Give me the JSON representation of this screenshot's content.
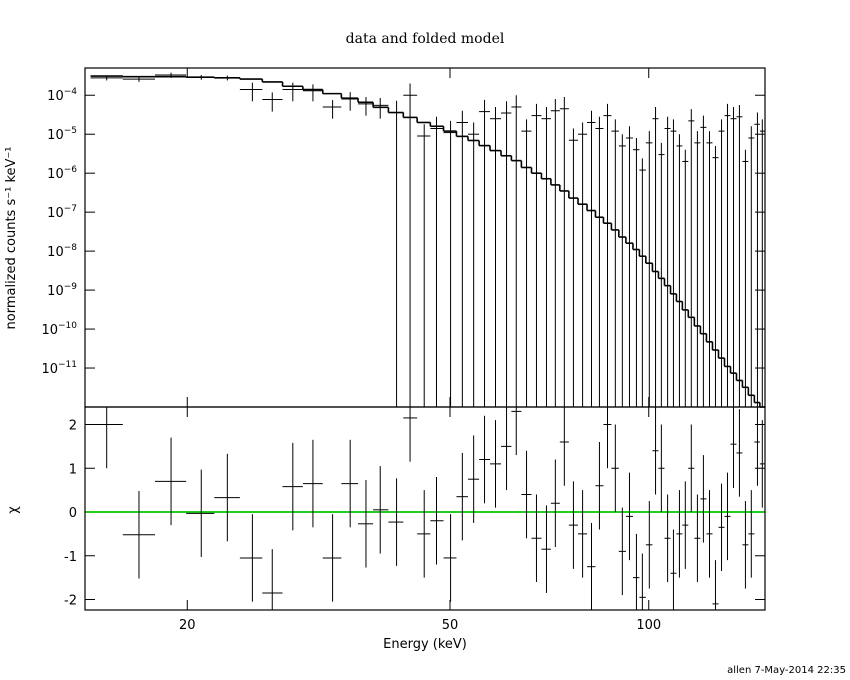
{
  "chart_data": [
    {
      "type": "spectrum",
      "title": "data and folded model",
      "ylabel": "normalized counts s⁻¹ keV⁻¹",
      "log_x": true,
      "log_y": true,
      "xlim": [
        14,
        150
      ],
      "ylim": [
        1e-12,
        0.0005
      ],
      "yticks": [
        {
          "value": 0.0001,
          "label": "10−4"
        },
        {
          "value": 1e-05,
          "label": "10−5"
        },
        {
          "value": 1e-06,
          "label": "10−6"
        },
        {
          "value": 1e-07,
          "label": "10−7"
        },
        {
          "value": 1e-08,
          "label": "10−8"
        },
        {
          "value": 1e-09,
          "label": "10−9"
        },
        {
          "value": 1e-10,
          "label": "10−10"
        },
        {
          "value": 1e-11,
          "label": "10−11"
        }
      ],
      "x": [
        15.1,
        16.9,
        18.9,
        21.0,
        23.0,
        25.1,
        26.9,
        28.9,
        31.0,
        33.2,
        35.3,
        37.3,
        39.2,
        41.5,
        43.5,
        45.7,
        47.7,
        50.1,
        52.2,
        54.3,
        56.4,
        58.6,
        60.9,
        63.0,
        65.3,
        67.6,
        70.0,
        72.2,
        74.5,
        76.9,
        79.4,
        81.9,
        84.2,
        86.6,
        89.0,
        91.2,
        93.5,
        95.8,
        97.8,
        100.2,
        102.4,
        104.5,
        106.8,
        109.0,
        111.3,
        113.6,
        116.0,
        118.5,
        121.0,
        123.6,
        126.2,
        128.9,
        131.6,
        134.4,
        137.2,
        140.1,
        143.0,
        146.1,
        148.6
      ],
      "data_values": [
        0.00028,
        0.00026,
        0.00033,
        0.00029,
        0.00028,
        0.00014,
        7.8e-05,
        0.00014,
        0.00013,
        5e-05,
        8e-05,
        6e-05,
        5.5e-05,
        3.6e-05,
        0.0001,
        9e-06,
        1.4e-05,
        1.1e-05,
        2e-05,
        1e-05,
        3.8e-05,
        2.5e-05,
        3.5e-05,
        5e-05,
        1.2e-05,
        3e-05,
        2.5e-05,
        4e-05,
        4.5e-05,
        7e-06,
        1e-05,
        2e-05,
        1.4e-05,
        3e-05,
        1.2e-05,
        5e-06,
        8e-06,
        4e-06,
        1.2e-06,
        6e-06,
        2.5e-05,
        3e-06,
        1.4e-05,
        1.2e-05,
        5e-06,
        2e-06,
        2.2e-05,
        6e-06,
        1.5e-05,
        6e-06,
        2.5e-06,
        1.2e-05,
        3e-05,
        2.5e-05,
        2.8e-05,
        2e-06,
        8e-06,
        1.8e-05,
        1.2e-05
      ],
      "errors": [
        4e-05,
        4e-05,
        5e-05,
        4e-05,
        4e-05,
        7e-05,
        4e-05,
        7e-05,
        6e-05,
        2.5e-05,
        4e-05,
        3e-05,
        3e-05,
        3.6e-05,
        0.0001,
        9e-06,
        1.4e-05,
        1.1e-05,
        2e-05,
        1e-05,
        3.8e-05,
        2.5e-05,
        3.5e-05,
        5e-05,
        1.2e-05,
        3e-05,
        2.5e-05,
        4e-05,
        4.5e-05,
        7e-06,
        1e-05,
        2e-05,
        1.4e-05,
        3e-05,
        1.2e-05,
        5e-06,
        8e-06,
        4e-06,
        1.2e-06,
        6e-06,
        2.5e-05,
        3e-06,
        1.4e-05,
        1.2e-05,
        5e-06,
        2e-06,
        2.2e-05,
        6e-06,
        1.5e-05,
        6e-06,
        2.5e-06,
        1.2e-05,
        3e-05,
        2.5e-05,
        2.8e-05,
        2e-06,
        8e-06,
        1.8e-05,
        1.2e-05
      ],
      "model_values": [
        0.00031,
        0.0003,
        0.0003,
        0.00029,
        0.00028,
        0.00026,
        0.00022,
        0.00017,
        0.00014,
        0.00011,
        8.4e-05,
        6.6e-05,
        4.9e-05,
        3.6e-05,
        2.7e-05,
        2e-05,
        1.6e-05,
        1.2e-05,
        8.8e-06,
        6.9e-06,
        5.1e-06,
        3.8e-06,
        2.8e-06,
        2.1e-06,
        1.4e-06,
        1e-06,
        7.2e-07,
        5e-07,
        3.5e-07,
        2.3e-07,
        1.6e-07,
        1.1e-07,
        7.4e-08,
        5.2e-08,
        3.5e-08,
        2.3e-08,
        1.6e-08,
        1.1e-08,
        7.4e-09,
        4.9e-09,
        3e-09,
        2e-09,
        1.3e-09,
        8e-10,
        5.1e-10,
        3.1e-10,
        2e-10,
        1.2e-10,
        7.6e-11,
        4.7e-11,
        2.9e-11,
        1.8e-11,
        1.1e-11,
        7.4e-12,
        4.8e-12,
        3.2e-12,
        2e-12,
        1.3e-12,
        1e-12
      ]
    },
    {
      "type": "residual",
      "xlabel": "Energy (keV)",
      "ylabel": "χ",
      "log_x": true,
      "xlim": [
        14,
        150
      ],
      "xticks": [
        20,
        50,
        100
      ],
      "ylim": [
        -2.24,
        2.4
      ],
      "yticks": [
        -2,
        -1,
        0,
        1,
        2
      ],
      "zero_line": 0,
      "zero_color": "#22cc22",
      "residual_sigma": 1,
      "x": [
        15.1,
        16.9,
        18.9,
        21.0,
        23.0,
        25.1,
        26.9,
        28.9,
        31.0,
        33.2,
        35.3,
        37.3,
        39.2,
        41.5,
        43.5,
        45.7,
        47.7,
        50.1,
        52.2,
        54.3,
        56.4,
        58.6,
        60.9,
        63.0,
        65.3,
        67.6,
        70.0,
        72.2,
        74.5,
        76.9,
        79.4,
        81.9,
        84.2,
        86.6,
        89.0,
        91.2,
        93.5,
        95.8,
        97.8,
        100.2,
        102.4,
        104.5,
        106.8,
        109.0,
        111.3,
        113.6,
        116.0,
        118.5,
        121.0,
        123.6,
        126.2,
        128.9,
        131.6,
        134.4,
        137.2,
        140.1,
        143.0,
        146.1,
        148.6
      ],
      "values": [
        2.0,
        -0.52,
        0.7,
        -0.03,
        0.33,
        -1.05,
        -1.85,
        0.58,
        0.65,
        -1.05,
        0.65,
        -0.27,
        0.05,
        -0.23,
        2.15,
        -0.5,
        -0.2,
        -1.05,
        0.35,
        0.75,
        1.2,
        1.1,
        1.5,
        2.3,
        0.4,
        -0.6,
        -0.85,
        0.2,
        1.6,
        -0.3,
        -0.5,
        -1.25,
        0.6,
        2.0,
        1.0,
        -0.9,
        -0.1,
        -1.5,
        -1.95,
        -0.75,
        1.4,
        1.0,
        -0.6,
        -1.4,
        -0.5,
        -0.3,
        1.0,
        -0.6,
        0.3,
        -0.5,
        -2.1,
        -0.35,
        -0.1,
        1.55,
        1.35,
        -0.75,
        -0.5,
        1.6,
        1.1
      ]
    }
  ],
  "footer": "allen  7-May-2014 22:35"
}
